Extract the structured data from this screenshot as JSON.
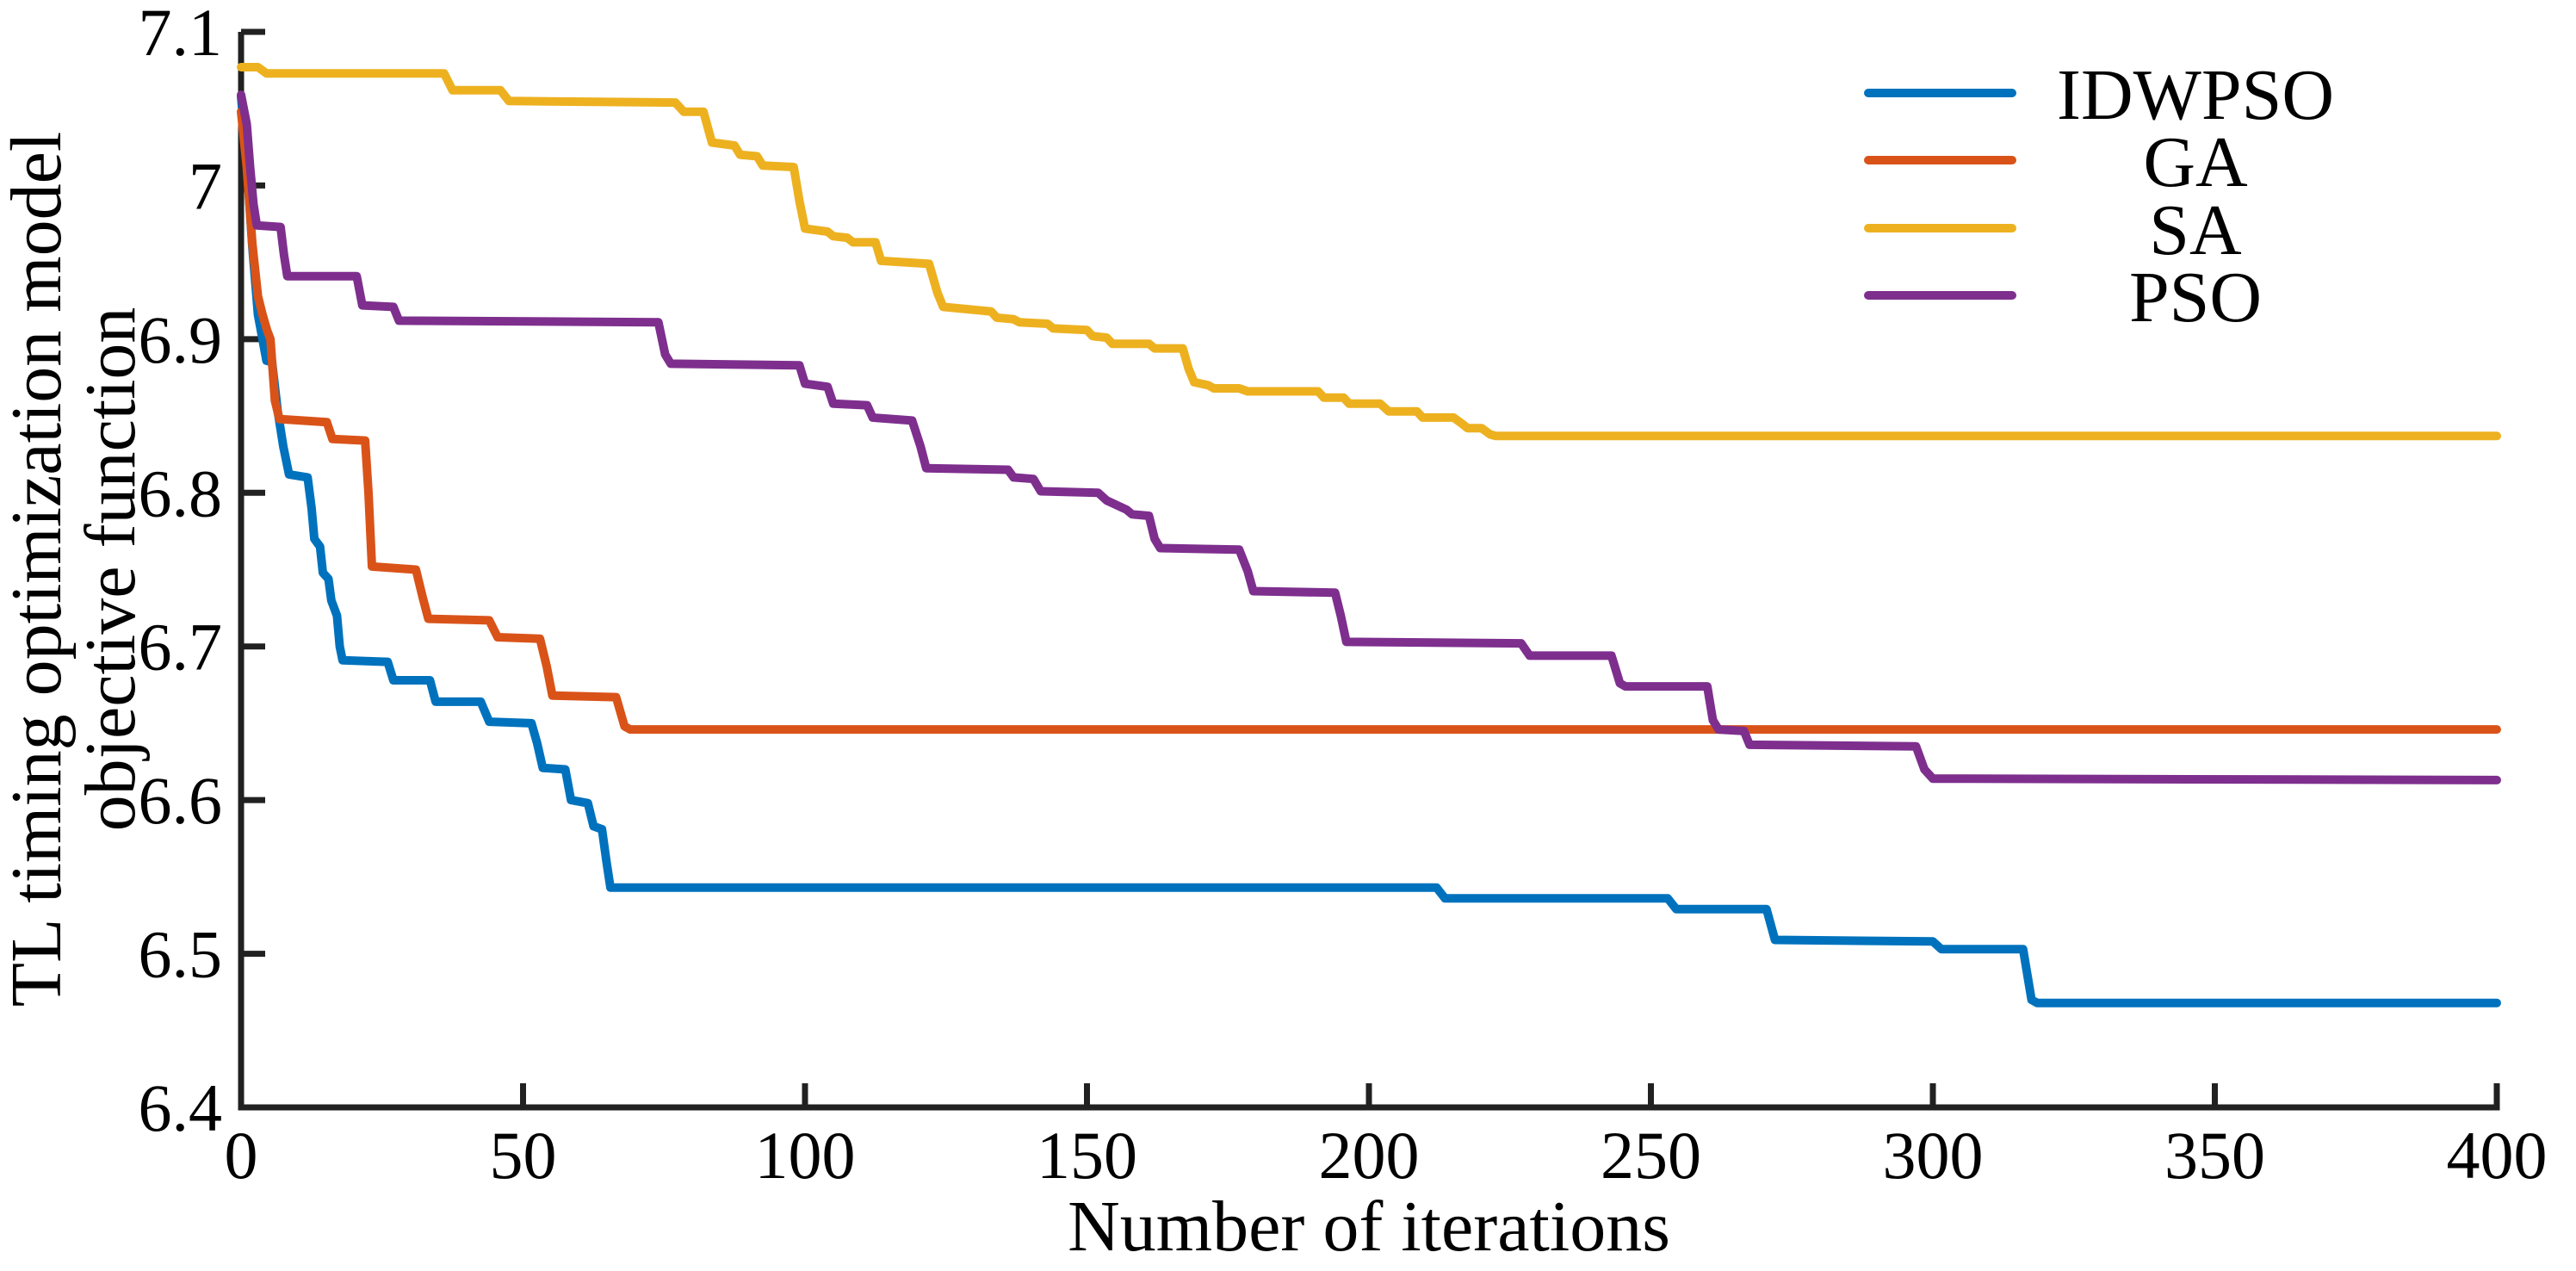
{
  "figure": {
    "background": "#ffffff"
  },
  "axes": {
    "axis_color": "#212121",
    "x_label": "Number of iterations",
    "y_label_line1": "TL timing optimization model",
    "y_label_line2": "objective function",
    "x_ticks": [
      {
        "value": 0,
        "label": "0"
      },
      {
        "value": 50,
        "label": "50"
      },
      {
        "value": 100,
        "label": "100"
      },
      {
        "value": 150,
        "label": "150"
      },
      {
        "value": 200,
        "label": "200"
      },
      {
        "value": 250,
        "label": "250"
      },
      {
        "value": 300,
        "label": "300"
      },
      {
        "value": 350,
        "label": "350"
      },
      {
        "value": 400,
        "label": "400"
      }
    ],
    "y_ticks": [
      {
        "value": 7.1,
        "label": "7.1"
      },
      {
        "value": 7.0,
        "label": "7"
      },
      {
        "value": 6.9,
        "label": "6.9"
      },
      {
        "value": 6.8,
        "label": "6.8"
      },
      {
        "value": 6.7,
        "label": "6.7"
      },
      {
        "value": 6.6,
        "label": "6.6"
      },
      {
        "value": 6.5,
        "label": "6.5"
      },
      {
        "value": 6.4,
        "label": "6.4"
      }
    ]
  },
  "chart_data": {
    "type": "line",
    "title": "",
    "xlabel": "Number of iterations",
    "ylabel": "TL timing optimization model objective function",
    "xlim": [
      0,
      400
    ],
    "ylim": [
      6.4,
      7.1
    ],
    "grid": false,
    "legend_position": "upper right",
    "line_style": "step (best objective value so far vs iteration)",
    "series": [
      {
        "name": "IDWPSO",
        "color": "#0072BD",
        "final_value": 6.468,
        "points": [
          [
            0,
            7.058
          ],
          [
            1,
            7.015
          ],
          [
            2,
            6.96
          ],
          [
            3,
            6.916
          ],
          [
            4.5,
            6.886
          ],
          [
            5.5,
            6.885
          ],
          [
            6.5,
            6.853
          ],
          [
            7.5,
            6.83
          ],
          [
            8.5,
            6.812
          ],
          [
            11.8,
            6.81
          ],
          [
            12.5,
            6.79
          ],
          [
            13,
            6.77
          ],
          [
            14,
            6.765
          ],
          [
            14.5,
            6.748
          ],
          [
            15.5,
            6.744
          ],
          [
            16,
            6.73
          ],
          [
            17,
            6.72
          ],
          [
            17.5,
            6.7
          ],
          [
            18,
            6.691
          ],
          [
            26,
            6.69
          ],
          [
            27,
            6.678
          ],
          [
            33.5,
            6.678
          ],
          [
            34.5,
            6.664
          ],
          [
            42.5,
            6.664
          ],
          [
            44,
            6.651
          ],
          [
            51.5,
            6.65
          ],
          [
            52.5,
            6.637
          ],
          [
            53.5,
            6.621
          ],
          [
            57.5,
            6.62
          ],
          [
            58.5,
            6.6
          ],
          [
            61.5,
            6.598
          ],
          [
            62.5,
            6.583
          ],
          [
            64,
            6.581
          ],
          [
            64.8,
            6.56
          ],
          [
            65.5,
            6.543
          ],
          [
            212,
            6.543
          ],
          [
            213.5,
            6.536
          ],
          [
            253,
            6.536
          ],
          [
            254.5,
            6.529
          ],
          [
            270.5,
            6.529
          ],
          [
            272,
            6.509
          ],
          [
            300,
            6.508
          ],
          [
            301.5,
            6.503
          ],
          [
            316,
            6.503
          ],
          [
            317.5,
            6.47
          ],
          [
            318.5,
            6.468
          ],
          [
            400,
            6.468
          ]
        ]
      },
      {
        "name": "GA",
        "color": "#D95319",
        "final_value": 6.646,
        "points": [
          [
            0,
            7.048
          ],
          [
            1,
            7.012
          ],
          [
            2,
            6.962
          ],
          [
            3,
            6.928
          ],
          [
            3.8,
            6.916
          ],
          [
            4.6,
            6.906
          ],
          [
            5.2,
            6.9
          ],
          [
            6,
            6.86
          ],
          [
            6.8,
            6.848
          ],
          [
            15.2,
            6.846
          ],
          [
            16.2,
            6.835
          ],
          [
            22,
            6.834
          ],
          [
            22.6,
            6.8
          ],
          [
            23.2,
            6.752
          ],
          [
            31,
            6.75
          ],
          [
            32.2,
            6.732
          ],
          [
            33.2,
            6.718
          ],
          [
            44,
            6.717
          ],
          [
            45.5,
            6.706
          ],
          [
            53,
            6.705
          ],
          [
            54.2,
            6.687
          ],
          [
            55.2,
            6.668
          ],
          [
            66.5,
            6.667
          ],
          [
            68,
            6.648
          ],
          [
            69,
            6.646
          ],
          [
            400,
            6.646
          ]
        ]
      },
      {
        "name": "SA",
        "color": "#EDB120",
        "final_value": 6.837,
        "points": [
          [
            0,
            7.077
          ],
          [
            3,
            7.077
          ],
          [
            4.5,
            7.073
          ],
          [
            36,
            7.073
          ],
          [
            37.5,
            7.062
          ],
          [
            46,
            7.062
          ],
          [
            47.5,
            7.055
          ],
          [
            77,
            7.054
          ],
          [
            78.5,
            7.048
          ],
          [
            82,
            7.048
          ],
          [
            83.5,
            7.028
          ],
          [
            87.5,
            7.026
          ],
          [
            88.5,
            7.02
          ],
          [
            91.5,
            7.019
          ],
          [
            92.5,
            7.013
          ],
          [
            98,
            7.012
          ],
          [
            99,
            6.99
          ],
          [
            100,
            6.972
          ],
          [
            104,
            6.97
          ],
          [
            105,
            6.967
          ],
          [
            107.5,
            6.966
          ],
          [
            108.5,
            6.963
          ],
          [
            112.5,
            6.963
          ],
          [
            113.5,
            6.951
          ],
          [
            122,
            6.949
          ],
          [
            123.5,
            6.93
          ],
          [
            124.5,
            6.921
          ],
          [
            133,
            6.918
          ],
          [
            134,
            6.914
          ],
          [
            137,
            6.913
          ],
          [
            138,
            6.911
          ],
          [
            143,
            6.91
          ],
          [
            144,
            6.907
          ],
          [
            150,
            6.906
          ],
          [
            151,
            6.902
          ],
          [
            153.5,
            6.901
          ],
          [
            154.5,
            6.897
          ],
          [
            161,
            6.897
          ],
          [
            162,
            6.894
          ],
          [
            167,
            6.894
          ],
          [
            168,
            6.881
          ],
          [
            169,
            6.872
          ],
          [
            171.5,
            6.87
          ],
          [
            172.5,
            6.868
          ],
          [
            177,
            6.868
          ],
          [
            178.5,
            6.866
          ],
          [
            191,
            6.866
          ],
          [
            192,
            6.862
          ],
          [
            195.5,
            6.862
          ],
          [
            196.5,
            6.858
          ],
          [
            202,
            6.858
          ],
          [
            203.5,
            6.853
          ],
          [
            208.5,
            6.853
          ],
          [
            209.5,
            6.849
          ],
          [
            215,
            6.849
          ],
          [
            216.5,
            6.845
          ],
          [
            217.5,
            6.842
          ],
          [
            220,
            6.842
          ],
          [
            221.5,
            6.838
          ],
          [
            222.5,
            6.837
          ],
          [
            400,
            6.837
          ]
        ]
      },
      {
        "name": "PSO",
        "color": "#7E2F8E",
        "final_value": 6.613,
        "points": [
          [
            0,
            7.059
          ],
          [
            1,
            7.04
          ],
          [
            1.6,
            7.012
          ],
          [
            2.2,
            6.988
          ],
          [
            2.8,
            6.974
          ],
          [
            7,
            6.973
          ],
          [
            7.6,
            6.955
          ],
          [
            8.2,
            6.941
          ],
          [
            20.5,
            6.941
          ],
          [
            21.5,
            6.922
          ],
          [
            27,
            6.921
          ],
          [
            28,
            6.912
          ],
          [
            74,
            6.911
          ],
          [
            75.2,
            6.89
          ],
          [
            76.2,
            6.884
          ],
          [
            99,
            6.883
          ],
          [
            100,
            6.871
          ],
          [
            104,
            6.869
          ],
          [
            105,
            6.858
          ],
          [
            111,
            6.857
          ],
          [
            112,
            6.849
          ],
          [
            119,
            6.847
          ],
          [
            120.5,
            6.83
          ],
          [
            121.5,
            6.816
          ],
          [
            136,
            6.815
          ],
          [
            137,
            6.81
          ],
          [
            140.5,
            6.809
          ],
          [
            141.8,
            6.801
          ],
          [
            152,
            6.8
          ],
          [
            153.5,
            6.795
          ],
          [
            157,
            6.789
          ],
          [
            158,
            6.786
          ],
          [
            161,
            6.785
          ],
          [
            162,
            6.77
          ],
          [
            163,
            6.764
          ],
          [
            177,
            6.763
          ],
          [
            178.5,
            6.749
          ],
          [
            179.5,
            6.736
          ],
          [
            194,
            6.735
          ],
          [
            195,
            6.72
          ],
          [
            196,
            6.703
          ],
          [
            227,
            6.702
          ],
          [
            228.5,
            6.694
          ],
          [
            243,
            6.694
          ],
          [
            244.5,
            6.676
          ],
          [
            245.5,
            6.674
          ],
          [
            260,
            6.674
          ],
          [
            261,
            6.652
          ],
          [
            262,
            6.646
          ],
          [
            266.5,
            6.645
          ],
          [
            267.5,
            6.636
          ],
          [
            297,
            6.635
          ],
          [
            298.5,
            6.62
          ],
          [
            300,
            6.614
          ],
          [
            400,
            6.613
          ]
        ]
      }
    ]
  }
}
